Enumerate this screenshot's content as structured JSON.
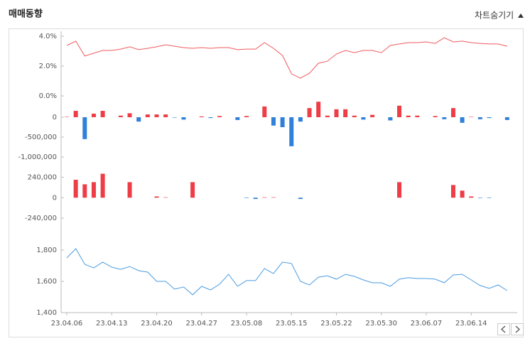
{
  "header": {
    "title": "매매동향",
    "toggle": "차트숨기기"
  },
  "chart_data": [
    {
      "type": "line",
      "color": "#ef5a5f",
      "values": [
        3.38,
        3.67,
        2.67,
        2.86,
        3.05,
        3.05,
        3.14,
        3.29,
        3.1,
        3.19,
        3.29,
        3.43,
        3.33,
        3.24,
        3.19,
        3.24,
        3.19,
        3.24,
        3.24,
        3.1,
        3.14,
        3.14,
        3.57,
        3.19,
        2.71,
        1.48,
        1.19,
        1.52,
        2.19,
        2.33,
        2.81,
        3.05,
        2.9,
        3.05,
        3.05,
        2.9,
        3.38,
        3.48,
        3.57,
        3.57,
        3.62,
        3.52,
        3.9,
        3.62,
        3.67,
        3.57,
        3.52,
        3.48,
        3.48,
        3.33
      ],
      "ylim": [
        0,
        4.3
      ],
      "yticks": [
        {
          "value": 4,
          "label": "4.0%"
        },
        {
          "value": 2,
          "label": "2.0%"
        },
        {
          "value": 0,
          "label": "0.0%"
        }
      ]
    },
    {
      "type": "bar",
      "positive_color": "#ee3d47",
      "negative_color": "#2f80d9",
      "values": [
        10000,
        160000,
        -550000,
        90000,
        160000,
        0,
        40000,
        100000,
        -110000,
        70000,
        70000,
        70000,
        -10000,
        -60000,
        0,
        20000,
        -20000,
        30000,
        0,
        -70000,
        30000,
        0,
        270000,
        -210000,
        -250000,
        -730000,
        -110000,
        230000,
        390000,
        40000,
        200000,
        200000,
        40000,
        -60000,
        60000,
        0,
        -80000,
        290000,
        40000,
        40000,
        0,
        30000,
        -50000,
        230000,
        -140000,
        10000,
        -50000,
        -20000,
        0,
        -70000
      ],
      "ylim": [
        -1100000,
        400000
      ],
      "yticks": [
        0,
        {
          "value": -500000,
          "label": "-500,000"
        },
        {
          "value": -1000000,
          "label": "-1,000,000"
        }
      ]
    },
    {
      "type": "bar",
      "positive_color": "#ee3d47",
      "negative_color": "#2f80d9",
      "values": [
        0,
        210000,
        157000,
        182000,
        281000,
        0,
        0,
        182000,
        0,
        0,
        15000,
        5000,
        0,
        0,
        182000,
        0,
        0,
        0,
        0,
        0,
        -5000,
        -15000,
        5000,
        5000,
        0,
        0,
        -15000,
        0,
        0,
        0,
        0,
        0,
        0,
        0,
        0,
        0,
        0,
        182000,
        0,
        0,
        0,
        0,
        0,
        149000,
        83000,
        15000,
        -5000,
        -5000,
        0,
        0
      ],
      "ylim": [
        -300000,
        350000
      ],
      "yticks": [
        {
          "value": 240000,
          "label": "240,000"
        },
        0,
        {
          "value": -240000,
          "label": "-240,000"
        }
      ]
    },
    {
      "type": "line",
      "color": "#4a9be0",
      "categories": [
        "23.04.06",
        null,
        null,
        null,
        null,
        "23.04.13",
        null,
        null,
        null,
        null,
        "23.04.20",
        null,
        null,
        null,
        null,
        "23.04.27",
        null,
        null,
        null,
        null,
        "23.05.08",
        null,
        null,
        null,
        null,
        "23.05.15",
        null,
        null,
        null,
        null,
        "23.05.22",
        null,
        null,
        null,
        null,
        "23.05.30",
        null,
        null,
        null,
        null,
        "23.06.07",
        null,
        null,
        null,
        null,
        "23.06.14",
        null,
        null,
        null,
        null
      ],
      "values": [
        1750,
        1809,
        1709,
        1686,
        1723,
        1691,
        1677,
        1695,
        1668,
        1659,
        1600,
        1600,
        1550,
        1564,
        1514,
        1568,
        1545,
        1582,
        1645,
        1568,
        1605,
        1605,
        1682,
        1650,
        1723,
        1714,
        1600,
        1577,
        1627,
        1636,
        1614,
        1645,
        1632,
        1609,
        1591,
        1591,
        1568,
        1614,
        1623,
        1618,
        1618,
        1614,
        1591,
        1641,
        1645,
        1609,
        1573,
        1555,
        1577,
        1541
      ],
      "ylim": [
        1400,
        1880
      ],
      "yticks": [
        {
          "value": 1800,
          "label": "1,800"
        },
        {
          "value": 1600,
          "label": "1,600"
        },
        {
          "value": 1400,
          "label": "1,400"
        }
      ]
    }
  ]
}
